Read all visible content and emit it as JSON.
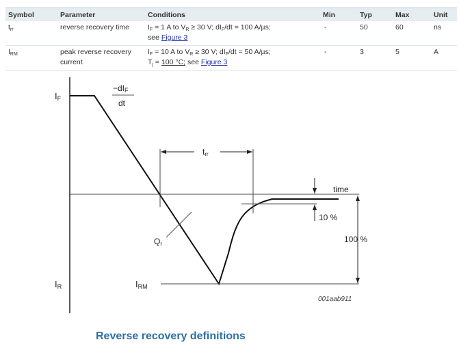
{
  "table": {
    "headers": [
      "Symbol",
      "Parameter",
      "Conditions",
      "Min",
      "Typ",
      "Max",
      "Unit"
    ],
    "rows": [
      {
        "symbol": "t",
        "symbol_sub": "rr",
        "parameter": "reverse recovery time",
        "conditions_line1": "I",
        "c1_sub1": "F",
        "c1_a": " = 1 A to V",
        "c1_sub2": "R",
        "c1_b": " ≥ 30 V; dI",
        "c1_sub3": "F",
        "c1_c": "/dt = 100 A/µs;",
        "conditions_line2": "see ",
        "link": "Figure 3",
        "min": "-",
        "typ": "50",
        "max": "60",
        "unit": "ns"
      },
      {
        "symbol": "I",
        "symbol_sub": "RM",
        "parameter_line1": "peak reverse recovery",
        "parameter_line2": "current",
        "conditions_line1": "I",
        "c1_sub1": "F",
        "c1_a": " = 10 A to V",
        "c1_sub2": "R",
        "c1_b": " ≥ 30 V; dI",
        "c1_sub3": "F",
        "c1_c": "/dt = 50 A/µs;",
        "c2_a": "T",
        "c2_sub": "j",
        "c2_b": " = ",
        "c2_temp": "100 °C;",
        "c2_c": " see ",
        "link": "Figure 3",
        "min": "-",
        "typ": "3",
        "max": "5",
        "unit": "A"
      }
    ]
  },
  "figure": {
    "if_label": "I",
    "if_sub": "F",
    "ir_label": "I",
    "ir_sub": "R",
    "irm_label": "I",
    "irm_sub": "RM",
    "didt_num": "−dI",
    "didt_num_sub": "F",
    "didt_den": "dt",
    "trr_label": "t",
    "trr_sub": "rr",
    "qr_label": "Q",
    "qr_sub": "r",
    "time_label": "time",
    "pct10_label": "10 %",
    "pct100_label": "100 %",
    "figure_id": "001aab911"
  },
  "caption": "Reverse recovery definitions",
  "colors": {
    "header_bg": "#e6edf1",
    "link": "#2233aa",
    "caption": "#2f6fa3"
  }
}
